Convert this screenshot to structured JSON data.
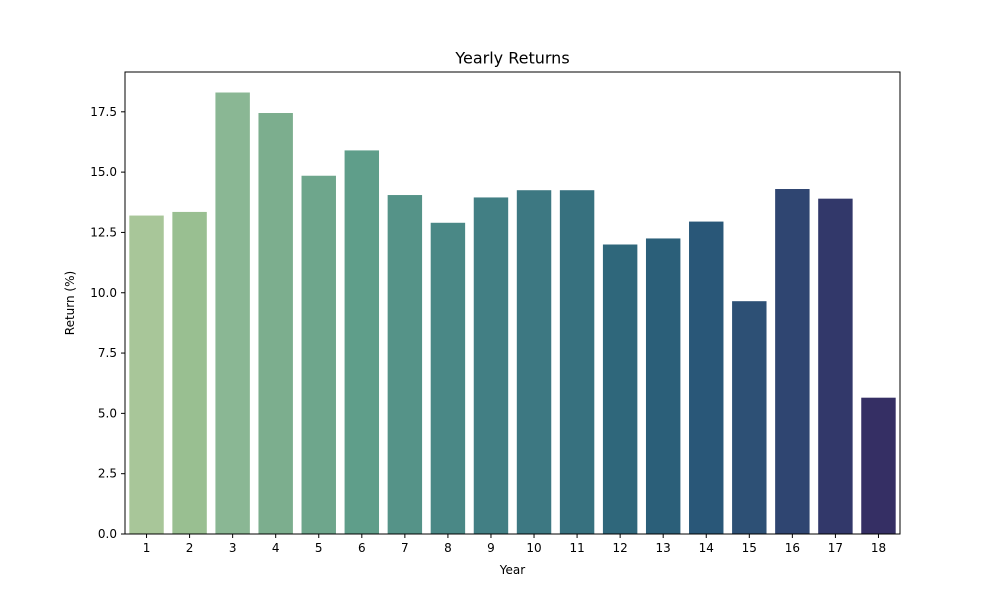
{
  "chart_data": {
    "type": "bar",
    "title": "Yearly Returns",
    "xlabel": "Year",
    "ylabel": "Return (%)",
    "categories": [
      "1",
      "2",
      "3",
      "4",
      "5",
      "6",
      "7",
      "8",
      "9",
      "10",
      "11",
      "12",
      "13",
      "14",
      "15",
      "16",
      "17",
      "18"
    ],
    "values": [
      13.2,
      13.35,
      18.3,
      17.45,
      14.85,
      15.9,
      14.05,
      12.9,
      13.95,
      14.25,
      14.25,
      12.0,
      12.25,
      12.95,
      9.65,
      14.3,
      13.9,
      5.65
    ],
    "ylim": [
      0,
      19.15
    ],
    "yticks": [
      "0.0",
      "2.5",
      "5.0",
      "7.5",
      "10.0",
      "12.5",
      "15.0",
      "17.5"
    ],
    "grid": false,
    "legend": "none",
    "colors": [
      "#a8c699",
      "#99bf91",
      "#8ab794",
      "#7cae8e",
      "#6ea68c",
      "#5f9e8a",
      "#559388",
      "#4a8886",
      "#427f84",
      "#3d7882",
      "#37717f",
      "#2f677b",
      "#2b5f79",
      "#295778",
      "#2d5075",
      "#2f4571",
      "#32386a",
      "#352f64"
    ]
  }
}
